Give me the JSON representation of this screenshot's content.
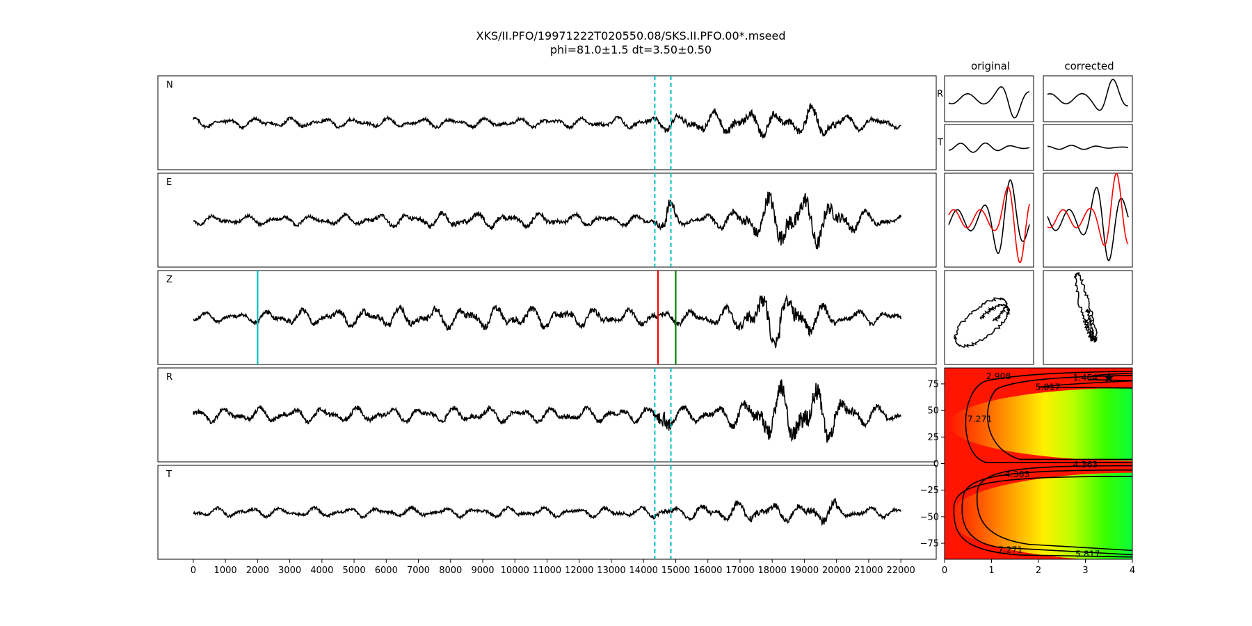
{
  "title": {
    "line1": "XKS/II.PFO/19971222T020550.08/SKS.II.PFO.00*.mseed",
    "line2": "phi=81.0±1.5 dt=3.50±0.50"
  },
  "chart_data": [
    {
      "type": "line",
      "panels": [
        "N",
        "E",
        "Z",
        "R",
        "T"
      ],
      "x_range": [
        0,
        22000
      ],
      "xlim": [
        -1100,
        23100
      ],
      "x_ticks": [
        0,
        1000,
        2000,
        3000,
        4000,
        5000,
        6000,
        7000,
        8000,
        9000,
        10000,
        11000,
        12000,
        13000,
        14000,
        15000,
        16000,
        17000,
        18000,
        19000,
        20000,
        21000,
        22000
      ],
      "analysis_window": {
        "start": 14350,
        "end": 14850,
        "color": "#00bfbf",
        "style": "dashed",
        "panels": [
          "N",
          "E",
          "R",
          "T"
        ]
      },
      "markers": [
        {
          "panel": "Z",
          "x": 2000,
          "color": "#00bfbf"
        },
        {
          "panel": "Z",
          "x": 14450,
          "color": "#ff0000"
        },
        {
          "panel": "Z",
          "x": 15000,
          "color": "#008000"
        }
      ]
    },
    {
      "type": "line",
      "column_titles": [
        "original",
        "corrected"
      ],
      "row_labels": [
        "R",
        "T"
      ]
    },
    {
      "type": "heatmap",
      "xlim": [
        0,
        4
      ],
      "ylim": [
        -90,
        90
      ],
      "x_ticks": [
        0,
        1,
        2,
        3,
        4
      ],
      "y_ticks": [
        75,
        50,
        25,
        0,
        -25,
        -50,
        -75
      ],
      "colormap": "gist_rainbow",
      "best_fit": {
        "dt": 3.5,
        "phi": 81.0
      },
      "contour_labels": [
        {
          "text": "2.908",
          "x": 1.15,
          "y": 82
        },
        {
          "text": "1.454",
          "x": 3.0,
          "y": 81
        },
        {
          "text": "5.817",
          "x": 2.2,
          "y": 72
        },
        {
          "text": "7.271",
          "x": 0.75,
          "y": 42
        },
        {
          "text": "4.363",
          "x": 3.0,
          "y": -1
        },
        {
          "text": "4.363",
          "x": 1.55,
          "y": -10
        },
        {
          "text": "7.271",
          "x": 1.4,
          "y": -81
        },
        {
          "text": "5.817",
          "x": 3.05,
          "y": -85
        }
      ]
    }
  ]
}
